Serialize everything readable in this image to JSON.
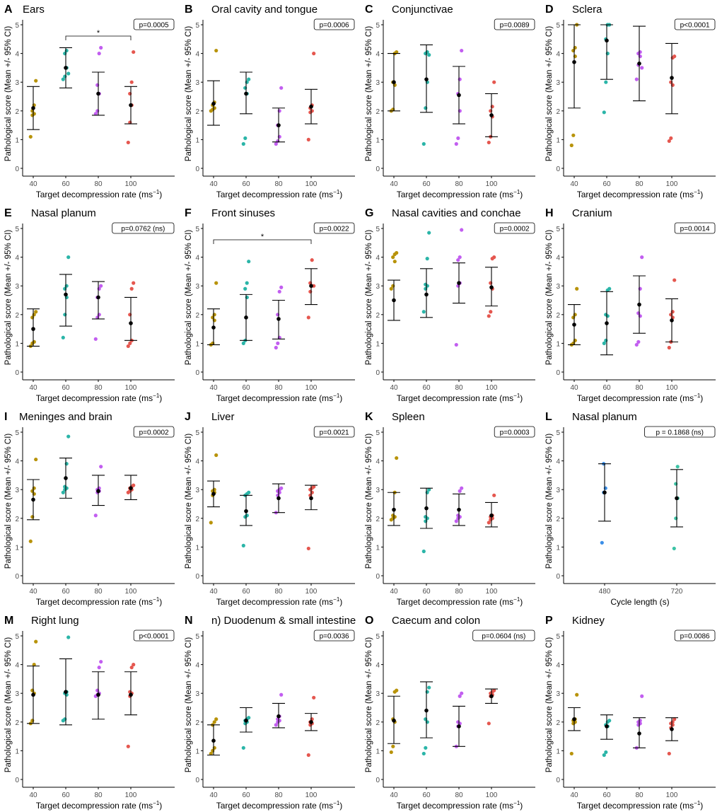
{
  "figure": {
    "ylabel": "Pathological score (Mean +/- 95% CI)"
  },
  "chart_data": [
    {
      "panel": "A",
      "title": "Ears",
      "type": "scatter",
      "categories": [
        "40",
        "60",
        "80",
        "100"
      ],
      "xlabel": "Target decompression rate (ms",
      "xlabel_sup": "−1",
      "xlabel_close": ")",
      "ylim": [
        0,
        5
      ],
      "yticks": [
        "0",
        "1",
        "2",
        "3",
        "4",
        "5"
      ],
      "pvalue": "p=0.0005",
      "bracket": {
        "from": "60",
        "to": "100",
        "label": "*"
      },
      "means": [
        2.1,
        3.5,
        2.6,
        2.2
      ],
      "ci_low": [
        1.35,
        2.8,
        1.85,
        1.55
      ],
      "ci_high": [
        2.85,
        4.2,
        3.35,
        2.85
      ],
      "points": [
        [
          1.1,
          1.85,
          1.9,
          2.0,
          2.2,
          3.05
        ],
        [
          3.1,
          3.2,
          3.5,
          4.0,
          4.1,
          3.3
        ],
        [
          1.9,
          2.0,
          2.6,
          2.9,
          4.0,
          4.2
        ],
        [
          0.9,
          1.6,
          2.2,
          2.6,
          3.0,
          4.05
        ]
      ]
    },
    {
      "panel": "B",
      "title": "Oral cavity and tongue",
      "type": "scatter",
      "categories": [
        "40",
        "60",
        "80",
        "100"
      ],
      "xlabel": "Target decompression rate (ms",
      "xlabel_sup": "−1",
      "xlabel_close": ")",
      "ylim": [
        0,
        5
      ],
      "yticks": [
        "0",
        "1",
        "2",
        "3",
        "4",
        "5"
      ],
      "pvalue": "p=0.0006",
      "means": [
        2.25,
        2.6,
        1.5,
        2.15
      ],
      "ci_low": [
        1.5,
        1.9,
        0.92,
        1.55
      ],
      "ci_high": [
        3.05,
        3.35,
        2.1,
        2.75
      ],
      "points": [
        [
          2.0,
          2.05,
          2.1,
          2.2,
          2.3,
          4.1
        ],
        [
          0.85,
          1.05,
          2.6,
          2.8,
          3.0,
          3.1
        ],
        [
          0.85,
          0.95,
          1.1,
          1.5,
          2.0,
          2.8
        ],
        [
          1.0,
          1.95,
          2.0,
          2.1,
          2.2,
          4.0
        ]
      ]
    },
    {
      "panel": "C",
      "title": "Conjunctivae",
      "type": "scatter",
      "categories": [
        "40",
        "60",
        "80",
        "100"
      ],
      "xlabel": "Target decompression rate (ms",
      "xlabel_sup": "−1",
      "xlabel_close": ")",
      "ylim": [
        0,
        5
      ],
      "yticks": [
        "0",
        "1",
        "2",
        "3",
        "4",
        "5"
      ],
      "pvalue": "p=0.0089",
      "means": [
        3.0,
        3.1,
        2.55,
        1.85
      ],
      "ci_low": [
        2.0,
        1.95,
        1.55,
        1.1
      ],
      "ci_high": [
        4.0,
        4.3,
        3.55,
        2.6
      ],
      "points": [
        [
          2.0,
          2.05,
          2.9,
          3.0,
          4.0,
          4.05
        ],
        [
          0.85,
          2.1,
          3.0,
          4.0,
          4.05,
          3.95
        ],
        [
          0.85,
          1.05,
          2.0,
          2.6,
          3.1,
          4.1
        ],
        [
          0.9,
          1.1,
          1.8,
          2.0,
          2.15,
          3.0
        ]
      ]
    },
    {
      "panel": "D",
      "title": "Sclera",
      "type": "scatter",
      "categories": [
        "40",
        "60",
        "80",
        "100"
      ],
      "xlabel": "Target decompression rate (ms",
      "xlabel_sup": "−1",
      "xlabel_close": ")",
      "ylim": [
        0,
        5
      ],
      "yticks": [
        "0",
        "1",
        "2",
        "3",
        "4",
        "5"
      ],
      "pvalue": "p<0.0001",
      "means": [
        3.7,
        4.45,
        3.65,
        3.15
      ],
      "ci_low": [
        2.1,
        3.1,
        2.35,
        1.9
      ],
      "ci_high": [
        5.0,
        5.0,
        4.95,
        4.35
      ],
      "points": [
        [
          0.8,
          1.15,
          3.9,
          4.1,
          4.2,
          5.0
        ],
        [
          1.95,
          3.0,
          4.0,
          4.5,
          5.0,
          5.0
        ],
        [
          3.1,
          3.6,
          3.9,
          4.0,
          4.05,
          3.5
        ],
        [
          0.95,
          1.05,
          2.9,
          3.0,
          3.85,
          3.9
        ]
      ]
    },
    {
      "panel": "E",
      "title": "Nasal planum",
      "type": "scatter",
      "categories": [
        "40",
        "60",
        "80",
        "100"
      ],
      "xlabel": "Target decompression rate (ms",
      "xlabel_sup": "−1",
      "xlabel_close": ")",
      "ylim": [
        0,
        5
      ],
      "yticks": [
        "0",
        "1",
        "2",
        "3",
        "4",
        "5"
      ],
      "pvalue": "p=0.0762 (ns)",
      "means": [
        1.5,
        2.7,
        2.6,
        1.7
      ],
      "ci_low": [
        0.9,
        1.6,
        1.85,
        1.1
      ],
      "ci_high": [
        2.2,
        3.4,
        3.15,
        2.6
      ],
      "points": [
        [
          0.9,
          1.0,
          1.05,
          1.9,
          2.0,
          2.1
        ],
        [
          1.2,
          2.0,
          2.6,
          2.9,
          3.0,
          4.0
        ],
        [
          1.15,
          1.9,
          2.0,
          2.6,
          2.9,
          3.0
        ],
        [
          0.9,
          1.0,
          1.1,
          2.0,
          2.9,
          3.1
        ]
      ]
    },
    {
      "panel": "F",
      "title": "Front sinuses",
      "type": "scatter",
      "categories": [
        "40",
        "60",
        "80",
        "100"
      ],
      "xlabel": "Target decompression rate (ms",
      "xlabel_sup": "−1",
      "xlabel_close": ")",
      "ylim": [
        0,
        5
      ],
      "yticks": [
        "0",
        "1",
        "2",
        "3",
        "4",
        "5"
      ],
      "pvalue": "p=0.0022",
      "bracket": {
        "from": "40",
        "to": "100",
        "label": "*"
      },
      "means": [
        1.55,
        1.9,
        1.85,
        3.0
      ],
      "ci_low": [
        0.95,
        1.1,
        1.15,
        2.35
      ],
      "ci_high": [
        2.2,
        2.7,
        2.5,
        3.6
      ],
      "points": [
        [
          0.95,
          1.0,
          1.8,
          1.9,
          2.0,
          3.1
        ],
        [
          1.0,
          1.1,
          2.6,
          2.9,
          3.1,
          3.85
        ],
        [
          0.85,
          1.0,
          1.2,
          2.0,
          2.8,
          2.95
        ],
        [
          1.9,
          2.8,
          3.0,
          3.1,
          3.9,
          3.0
        ]
      ]
    },
    {
      "panel": "G",
      "title": "Nasal cavities and conchae",
      "type": "scatter",
      "categories": [
        "40",
        "60",
        "80",
        "100"
      ],
      "xlabel": "Target decompression rate (ms",
      "xlabel_sup": "−1",
      "xlabel_close": ")",
      "ylim": [
        0,
        5
      ],
      "yticks": [
        "0",
        "1",
        "2",
        "3",
        "4",
        "5"
      ],
      "pvalue": "p=0.0002",
      "means": [
        2.5,
        2.7,
        3.1,
        2.95
      ],
      "ci_low": [
        1.8,
        1.9,
        2.4,
        2.3
      ],
      "ci_high": [
        3.2,
        3.6,
        3.8,
        3.65
      ],
      "points": [
        [
          2.9,
          3.0,
          3.85,
          4.0,
          4.1,
          4.15
        ],
        [
          2.1,
          2.9,
          3.0,
          3.05,
          3.95,
          4.85
        ],
        [
          0.95,
          3.0,
          3.1,
          3.9,
          4.0,
          4.95
        ],
        [
          1.95,
          2.1,
          2.9,
          3.1,
          3.95,
          4.0
        ]
      ]
    },
    {
      "panel": "H",
      "title": "Cranium",
      "type": "scatter",
      "categories": [
        "40",
        "60",
        "80",
        "100"
      ],
      "xlabel": "Target decompression rate (ms",
      "xlabel_sup": "−1",
      "xlabel_close": ")",
      "ylim": [
        0,
        5
      ],
      "yticks": [
        "0",
        "1",
        "2",
        "3",
        "4",
        "5"
      ],
      "pvalue": "p=0.0014",
      "means": [
        1.65,
        1.7,
        2.35,
        1.8
      ],
      "ci_low": [
        0.95,
        0.6,
        1.35,
        1.05
      ],
      "ci_high": [
        2.35,
        2.8,
        3.35,
        2.55
      ],
      "points": [
        [
          0.95,
          1.0,
          1.1,
          1.9,
          2.0,
          2.9
        ],
        [
          1.0,
          1.1,
          1.95,
          2.0,
          2.85,
          2.9
        ],
        [
          0.95,
          1.05,
          1.95,
          2.05,
          2.9,
          4.0
        ],
        [
          0.85,
          1.05,
          1.9,
          2.0,
          2.1,
          3.2
        ]
      ]
    },
    {
      "panel": "I",
      "title": "Meninges and brain",
      "type": "scatter",
      "categories": [
        "40",
        "60",
        "80",
        "100"
      ],
      "xlabel": "Target decompression rate (ms",
      "xlabel_sup": "−1",
      "xlabel_close": ")",
      "ylim": [
        0,
        5
      ],
      "yticks": [
        "0",
        "1",
        "2",
        "3",
        "4",
        "5"
      ],
      "pvalue": "p=0.0002",
      "means": [
        2.65,
        3.4,
        2.95,
        3.05
      ],
      "ci_low": [
        1.95,
        2.7,
        2.45,
        2.65
      ],
      "ci_high": [
        3.35,
        4.1,
        3.5,
        3.5
      ],
      "points": [
        [
          1.2,
          2.05,
          2.85,
          2.95,
          3.05,
          4.05
        ],
        [
          2.9,
          3.0,
          3.05,
          3.1,
          3.9,
          4.85
        ],
        [
          2.1,
          2.9,
          2.95,
          3.0,
          3.05,
          3.8
        ],
        [
          2.9,
          2.95,
          3.0,
          3.05,
          3.1,
          3.15
        ]
      ]
    },
    {
      "panel": "J",
      "title": "Liver",
      "type": "scatter",
      "categories": [
        "40",
        "60",
        "80",
        "100"
      ],
      "xlabel": "Target decompression rate (ms",
      "xlabel_sup": "−1",
      "xlabel_close": ")",
      "ylim": [
        0,
        5
      ],
      "yticks": [
        "0",
        "1",
        "2",
        "3",
        "4",
        "5"
      ],
      "pvalue": "p=0.0021",
      "means": [
        2.85,
        2.25,
        2.7,
        2.7
      ],
      "ci_low": [
        2.4,
        1.75,
        2.2,
        2.3
      ],
      "ci_high": [
        3.3,
        2.8,
        3.2,
        3.15
      ],
      "points": [
        [
          1.85,
          2.8,
          2.9,
          2.95,
          3.0,
          4.2
        ],
        [
          1.05,
          2.05,
          2.1,
          2.8,
          2.85,
          2.9
        ],
        [
          2.2,
          2.8,
          2.9,
          2.95,
          3.0,
          3.05
        ],
        [
          0.95,
          2.8,
          2.9,
          3.0,
          3.05,
          3.1
        ]
      ]
    },
    {
      "panel": "K",
      "title": "Spleen",
      "type": "scatter",
      "categories": [
        "40",
        "60",
        "80",
        "100"
      ],
      "xlabel": "Target decompression rate (ms",
      "xlabel_sup": "−1",
      "xlabel_close": ")",
      "ylim": [
        0,
        5
      ],
      "yticks": [
        "0",
        "1",
        "2",
        "3",
        "4",
        "5"
      ],
      "pvalue": "p=0.0003",
      "means": [
        2.3,
        2.35,
        2.3,
        2.1
      ],
      "ci_low": [
        1.75,
        1.65,
        1.75,
        1.7
      ],
      "ci_high": [
        2.9,
        3.05,
        2.85,
        2.55
      ],
      "points": [
        [
          1.95,
          2.0,
          2.05,
          2.1,
          2.9,
          4.1
        ],
        [
          0.85,
          1.9,
          2.0,
          2.05,
          2.9,
          3.0
        ],
        [
          1.9,
          2.0,
          2.05,
          2.1,
          2.95,
          3.05
        ],
        [
          1.85,
          1.95,
          2.0,
          2.05,
          2.1,
          2.8
        ]
      ]
    },
    {
      "panel": "L",
      "title": "Nasal planum",
      "type": "scatter",
      "categories": [
        "480",
        "720"
      ],
      "xlabel": "Cycle length (s)",
      "xlabel_sup": "",
      "xlabel_close": "",
      "ylim": [
        0,
        5
      ],
      "yticks": [
        "0",
        "1",
        "2",
        "3",
        "4",
        "5"
      ],
      "pvalue": "p = 0.1868 (ns)",
      "means": [
        2.9,
        2.7
      ],
      "ci_low": [
        1.9,
        1.7
      ],
      "ci_high": [
        3.9,
        3.7
      ],
      "points": [
        [
          1.15,
          2.9,
          3.05,
          3.9
        ],
        [
          0.95,
          2.0,
          2.7,
          3.2,
          3.8
        ]
      ]
    },
    {
      "panel": "M",
      "title": "Right lung",
      "type": "scatter",
      "categories": [
        "40",
        "60",
        "80",
        "100"
      ],
      "xlabel": "Target decompression rate (ms",
      "xlabel_sup": "−1",
      "xlabel_close": ")",
      "ylim": [
        0,
        5
      ],
      "yticks": [
        "0",
        "1",
        "2",
        "3",
        "4",
        "5"
      ],
      "pvalue": "p<0.0001",
      "means": [
        2.95,
        3.05,
        2.95,
        2.95
      ],
      "ci_low": [
        1.95,
        1.9,
        2.1,
        2.25
      ],
      "ci_high": [
        3.95,
        4.2,
        3.75,
        3.75
      ],
      "points": [
        [
          1.95,
          2.05,
          3.0,
          3.1,
          4.0,
          4.8
        ],
        [
          2.05,
          2.1,
          2.95,
          3.0,
          3.05,
          4.95
        ],
        [
          2.9,
          2.95,
          3.0,
          3.1,
          3.9,
          4.1
        ],
        [
          1.15,
          2.9,
          3.0,
          3.05,
          3.9,
          4.0
        ]
      ]
    },
    {
      "panel": "N",
      "title": "n) Duodenum & small intestine",
      "type": "scatter",
      "categories": [
        "40",
        "60",
        "80",
        "100"
      ],
      "xlabel": "Target decompression rate (ms",
      "xlabel_sup": "−1",
      "xlabel_close": ")",
      "ylim": [
        0,
        5
      ],
      "yticks": [
        "0",
        "1",
        "2",
        "3",
        "4",
        "5"
      ],
      "pvalue": "p=0.0036",
      "means": [
        1.35,
        2.05,
        2.2,
        2.0
      ],
      "ci_low": [
        0.85,
        1.65,
        1.8,
        1.7
      ],
      "ci_high": [
        1.9,
        2.5,
        2.65,
        2.3
      ],
      "points": [
        [
          0.9,
          1.0,
          1.1,
          1.9,
          2.0,
          2.1
        ],
        [
          1.1,
          1.95,
          2.0,
          2.05,
          2.1,
          2.15
        ],
        [
          1.9,
          2.0,
          2.05,
          2.1,
          2.2,
          2.95
        ],
        [
          0.85,
          1.9,
          1.95,
          2.0,
          2.1,
          2.85
        ]
      ]
    },
    {
      "panel": "O",
      "title": "Caecum and colon",
      "type": "scatter",
      "categories": [
        "40",
        "60",
        "80",
        "100"
      ],
      "xlabel": "Target decompression rate (ms",
      "xlabel_sup": "−1",
      "xlabel_close": ")",
      "ylim": [
        0,
        5
      ],
      "yticks": [
        "0",
        "1",
        "2",
        "3",
        "4",
        "5"
      ],
      "pvalue": "p=0.0604 (ns)",
      "means": [
        2.05,
        2.4,
        1.85,
        2.9
      ],
      "ci_low": [
        1.25,
        1.45,
        1.15,
        2.65
      ],
      "ci_high": [
        2.9,
        3.4,
        2.55,
        3.15
      ],
      "points": [
        [
          0.95,
          1.15,
          2.0,
          2.1,
          3.05,
          3.1
        ],
        [
          0.9,
          1.1,
          2.0,
          2.1,
          3.05,
          3.2
        ],
        [
          1.15,
          1.85,
          1.95,
          2.0,
          2.9,
          3.0
        ],
        [
          1.95,
          2.9,
          2.95,
          3.0,
          3.05,
          3.1
        ]
      ]
    },
    {
      "panel": "P",
      "title": "Kidney",
      "type": "scatter",
      "categories": [
        "40",
        "60",
        "80",
        "100"
      ],
      "xlabel": "Target decompression rate (ms",
      "xlabel_sup": "−1",
      "xlabel_close": ")",
      "ylim": [
        0,
        5
      ],
      "yticks": [
        "0",
        "1",
        "2",
        "3",
        "4",
        "5"
      ],
      "pvalue": "p=0.0086",
      "means": [
        2.1,
        1.85,
        1.6,
        1.75
      ],
      "ci_low": [
        1.7,
        1.4,
        1.1,
        1.35
      ],
      "ci_high": [
        2.5,
        2.25,
        2.15,
        2.15
      ],
      "points": [
        [
          0.9,
          1.95,
          2.0,
          2.05,
          2.1,
          2.95
        ],
        [
          0.85,
          0.95,
          1.85,
          1.9,
          2.0,
          2.05
        ],
        [
          1.1,
          1.9,
          1.95,
          2.0,
          2.05,
          2.9
        ],
        [
          0.9,
          1.8,
          1.9,
          1.95,
          2.0,
          2.1
        ]
      ]
    }
  ],
  "colors": {
    "groups4": [
      "#b8930a",
      "#2bb5a8",
      "#c25ef0",
      "#e5574f"
    ],
    "groups2": [
      "#3b8fe8",
      "#3cc3a5"
    ],
    "mean": "#000000",
    "axis": "#000000",
    "tick_text": "#4d4d4d"
  }
}
